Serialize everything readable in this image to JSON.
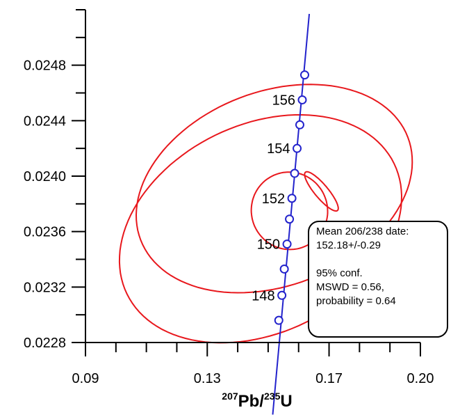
{
  "chart_data": {
    "type": "concordia",
    "xlabel": {
      "mass_a": "207",
      "elem_a": "Pb/",
      "mass_b": "235",
      "elem_b": "U"
    },
    "ylabel": "",
    "xlim": [
      0.09,
      0.2
    ],
    "ylim": [
      0.0228,
      0.0252
    ],
    "x_ticks": [
      "0.09",
      "0.13",
      "0.17",
      "0.20"
    ],
    "y_ticks": [
      "0.0228",
      "0.0232",
      "0.0236",
      "0.0240",
      "0.0244",
      "0.0248"
    ],
    "concordia": {
      "age_labels": [
        {
          "age": 148,
          "text": "148"
        },
        {
          "age": 150,
          "text": "150"
        },
        {
          "age": 152,
          "text": "152"
        },
        {
          "age": 154,
          "text": "154"
        },
        {
          "age": 156,
          "text": "156"
        }
      ],
      "markers": [
        {
          "x": 0.1535,
          "y": 0.02296
        },
        {
          "x": 0.1545,
          "y": 0.02314
        },
        {
          "x": 0.1553,
          "y": 0.02333
        },
        {
          "x": 0.1562,
          "y": 0.02351
        },
        {
          "x": 0.157,
          "y": 0.02369
        },
        {
          "x": 0.1578,
          "y": 0.02384
        },
        {
          "x": 0.1587,
          "y": 0.02402
        },
        {
          "x": 0.1595,
          "y": 0.0242
        },
        {
          "x": 0.1604,
          "y": 0.02437
        },
        {
          "x": 0.1612,
          "y": 0.02455
        },
        {
          "x": 0.162,
          "y": 0.02473
        }
      ],
      "line": {
        "x0": 0.1515,
        "y0": 0.02228,
        "x1": 0.1635,
        "y1": 0.02517
      }
    },
    "error_ellipses": [
      {
        "cx": 0.1475,
        "cy": 0.02362,
        "rx": 0.0488,
        "ry": 0.00075,
        "angle_deg": -26
      },
      {
        "cx": 0.152,
        "cy": 0.02391,
        "rx": 0.047,
        "ry": 0.0007,
        "angle_deg": -21
      },
      {
        "cx": 0.157,
        "cy": 0.02375,
        "rx": 0.0125,
        "ry": 0.00028,
        "angle_deg": -24
      },
      {
        "cx": 0.1675,
        "cy": 0.02389,
        "rx": 0.0022,
        "ry": 0.00018,
        "angle_deg": -40
      }
    ],
    "colors": {
      "ellipse": "#e8171c",
      "concordia": "#2222cc",
      "axis": "#000000"
    }
  },
  "result_box": {
    "line1": "Mean 206/238 date:",
    "line2": "152.18+/-0.29",
    "line3": "95% conf.",
    "line4": "MSWD = 0.56,",
    "line5": "probability = 0.64"
  }
}
